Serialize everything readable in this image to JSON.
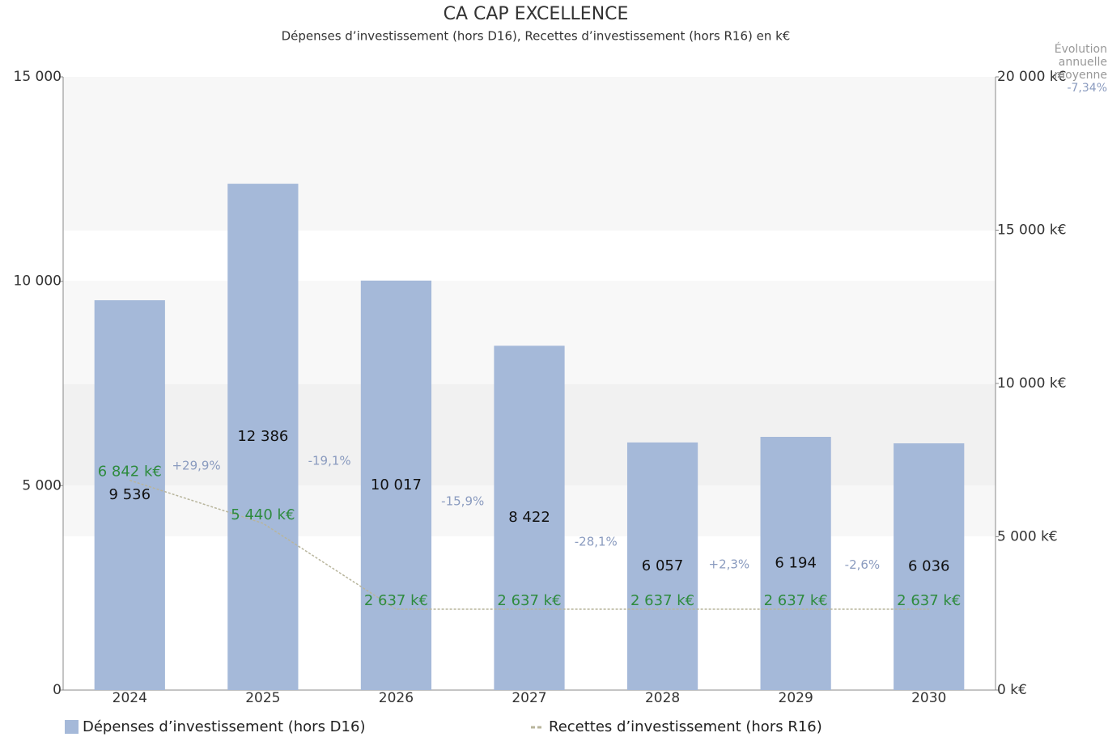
{
  "chart_data": {
    "type": "bar",
    "title": "CA CAP EXCELLENCE",
    "subtitle": "Dépenses d’investissement (hors D16), Recettes d’investissement (hors R16) en k€",
    "categories": [
      "2024",
      "2025",
      "2026",
      "2027",
      "2028",
      "2029",
      "2030"
    ],
    "series": [
      {
        "name": "Dépenses d’investissement (hors D16)",
        "color": "#a5b9d9",
        "type": "bar",
        "values": [
          9536,
          12386,
          10017,
          8422,
          6057,
          6194,
          6036
        ],
        "value_labels": [
          "9 536",
          "12 386",
          "10 017",
          "8 422",
          "6 057",
          "6 194",
          "6 036"
        ]
      },
      {
        "name": "Recettes d’investissement (hors R16)",
        "color": "#b8b59c",
        "type": "line",
        "axis": "y2",
        "values": [
          6842,
          5440,
          2637,
          2637,
          2637,
          2637,
          2637
        ],
        "value_labels": [
          "6 842 k€",
          "5 440 k€",
          "2 637 k€",
          "2 637 k€",
          "2 637 k€",
          "2 637 k€",
          "2 637 k€"
        ]
      }
    ],
    "growth_labels": [
      "+29,9%",
      "-19,1%",
      "-15,9%",
      "-28,1%",
      "+2,3%",
      "-2,6%"
    ],
    "average_label": [
      "Évolution",
      "annuelle",
      "moyenne",
      "-7,34%"
    ],
    "ylim": [
      0,
      15000
    ],
    "yticks": [
      0,
      {
        "value": 5000,
        "label": "5 000"
      },
      {
        "value": 10000,
        "label": "10 000"
      },
      {
        "value": 15000,
        "label": "15 000"
      }
    ],
    "y2lim": [
      0,
      20000
    ],
    "y2ticks": [
      {
        "value": 0,
        "label": "0 k€"
      },
      {
        "value": 5000,
        "label": "5 000 k€"
      },
      {
        "value": 10000,
        "label": "10 000 k€"
      },
      {
        "value": 15000,
        "label": "15 000 k€"
      },
      {
        "value": 20000,
        "label": "20 000 k€"
      }
    ],
    "legend": "bottom"
  }
}
